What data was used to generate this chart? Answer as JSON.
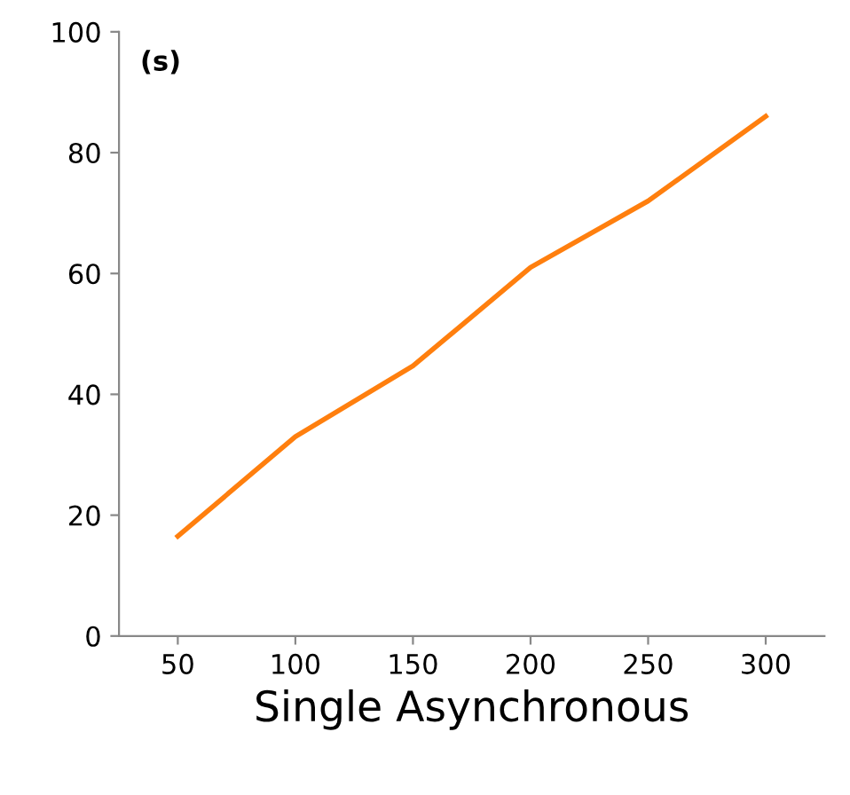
{
  "chart_data": {
    "type": "line",
    "xlabel": "Single Asynchronous",
    "ylabel": "(s)",
    "x": [
      50,
      100,
      150,
      200,
      250,
      300
    ],
    "series": [
      {
        "color": "#ff7f0e",
        "values": [
          16.5,
          33,
          44.7,
          61,
          72,
          86
        ]
      }
    ],
    "xlim": [
      25,
      325
    ],
    "ylim": [
      0,
      100
    ],
    "xticks": [
      50,
      100,
      150,
      200,
      250,
      300
    ],
    "yticks": [
      0,
      20,
      40,
      60,
      80,
      100
    ],
    "grid": false,
    "legend": false,
    "marker": "none",
    "line_style": "solid"
  }
}
